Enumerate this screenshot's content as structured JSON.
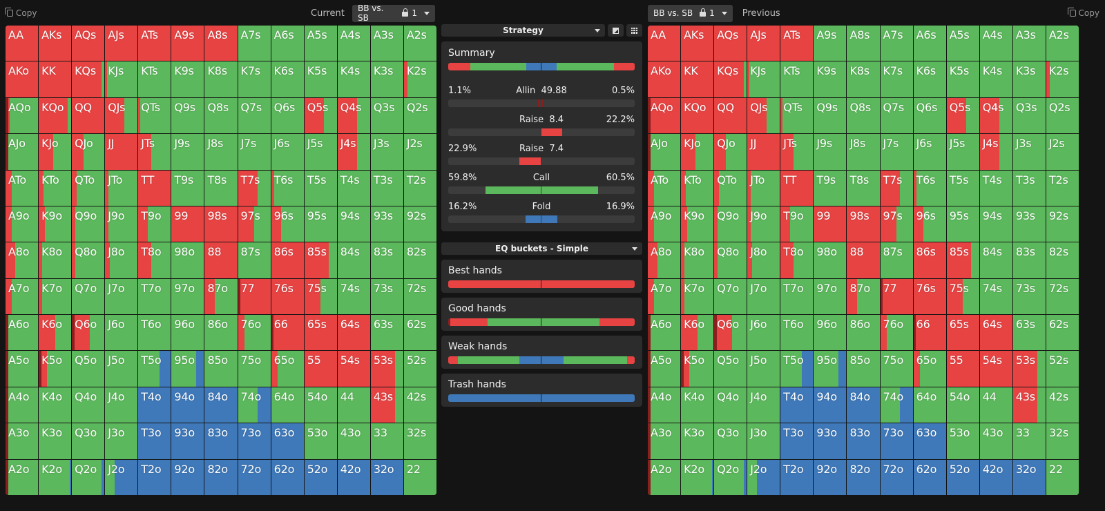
{
  "colors": {
    "raise": "#e84343",
    "call": "#5cb85c",
    "fold": "#3f79ba",
    "allin": "#8b1f1f"
  },
  "left": {
    "copy_label": "Copy",
    "title": "Current",
    "scenario": "BB vs. SB",
    "lock_value": "1",
    "grid": [
      [
        "AA",
        "AKs",
        "AQs",
        "AJs",
        "ATs",
        "A9s",
        "A8s",
        "A7s",
        "A6s",
        "A5s",
        "A4s",
        "A3s",
        "A2s"
      ],
      [
        "AKo",
        "KK",
        "KQs",
        "KJs",
        "KTs",
        "K9s",
        "K8s",
        "K7s",
        "K6s",
        "K5s",
        "K4s",
        "K3s",
        "K2s"
      ],
      [
        "AQo",
        "KQo",
        "QQ",
        "QJs",
        "QTs",
        "Q9s",
        "Q8s",
        "Q7s",
        "Q6s",
        "Q5s",
        "Q4s",
        "Q3s",
        "Q2s"
      ],
      [
        "AJo",
        "KJo",
        "QJo",
        "JJ",
        "JTs",
        "J9s",
        "J8s",
        "J7s",
        "J6s",
        "J5s",
        "J4s",
        "J3s",
        "J2s"
      ],
      [
        "ATo",
        "KTo",
        "QTo",
        "JTo",
        "TT",
        "T9s",
        "T8s",
        "T7s",
        "T6s",
        "T5s",
        "T4s",
        "T3s",
        "T2s"
      ],
      [
        "A9o",
        "K9o",
        "Q9o",
        "J9o",
        "T9o",
        "99",
        "98s",
        "97s",
        "96s",
        "95s",
        "94s",
        "93s",
        "92s"
      ],
      [
        "A8o",
        "K8o",
        "Q8o",
        "J8o",
        "T8o",
        "98o",
        "88",
        "87s",
        "86s",
        "85s",
        "84s",
        "83s",
        "82s"
      ],
      [
        "A7o",
        "K7o",
        "Q7o",
        "J7o",
        "T7o",
        "97o",
        "87o",
        "77",
        "76s",
        "75s",
        "74s",
        "73s",
        "72s"
      ],
      [
        "A6o",
        "K6o",
        "Q6o",
        "J6o",
        "T6o",
        "96o",
        "86o",
        "76o",
        "66",
        "65s",
        "64s",
        "63s",
        "62s"
      ],
      [
        "A5o",
        "K5o",
        "Q5o",
        "J5o",
        "T5o",
        "95o",
        "85o",
        "75o",
        "65o",
        "55",
        "54s",
        "53s",
        "52s"
      ],
      [
        "A4o",
        "K4o",
        "Q4o",
        "J4o",
        "T4o",
        "94o",
        "84o",
        "74o",
        "64o",
        "54o",
        "44",
        "43s",
        "42s"
      ],
      [
        "A3o",
        "K3o",
        "Q3o",
        "J3o",
        "T3o",
        "93o",
        "83o",
        "73o",
        "63o",
        "53o",
        "43o",
        "33",
        "32s"
      ],
      [
        "A2o",
        "K2o",
        "Q2o",
        "J2o",
        "T2o",
        "92o",
        "82o",
        "72o",
        "62o",
        "52o",
        "42o",
        "32o",
        "22"
      ]
    ]
  },
  "right": {
    "copy_label": "Copy",
    "title": "Previous",
    "scenario": "BB vs. SB",
    "lock_value": "1",
    "grid": [
      [
        "AA",
        "AKs",
        "AQs",
        "AJs",
        "ATs",
        "A9s",
        "A8s",
        "A7s",
        "A6s",
        "A5s",
        "A4s",
        "A3s",
        "A2s"
      ],
      [
        "AKo",
        "KK",
        "KQs",
        "KJs",
        "KTs",
        "K9s",
        "K8s",
        "K7s",
        "K6s",
        "K5s",
        "K4s",
        "K3s",
        "K2s"
      ],
      [
        "AQo",
        "KQo",
        "QQ",
        "QJs",
        "QTs",
        "Q9s",
        "Q8s",
        "Q7s",
        "Q6s",
        "Q5s",
        "Q4s",
        "Q3s",
        "Q2s"
      ],
      [
        "AJo",
        "KJo",
        "QJo",
        "JJ",
        "JTs",
        "J9s",
        "J8s",
        "J7s",
        "J6s",
        "J5s",
        "J4s",
        "J3s",
        "J2s"
      ],
      [
        "ATo",
        "KTo",
        "QTo",
        "JTo",
        "TT",
        "T9s",
        "T8s",
        "T7s",
        "T6s",
        "T5s",
        "T4s",
        "T3s",
        "T2s"
      ],
      [
        "A9o",
        "K9o",
        "Q9o",
        "J9o",
        "T9o",
        "99",
        "98s",
        "97s",
        "96s",
        "95s",
        "94s",
        "93s",
        "92s"
      ],
      [
        "A8o",
        "K8o",
        "Q8o",
        "J8o",
        "T8o",
        "98o",
        "88",
        "87s",
        "86s",
        "85s",
        "84s",
        "83s",
        "82s"
      ],
      [
        "A7o",
        "K7o",
        "Q7o",
        "J7o",
        "T7o",
        "97o",
        "87o",
        "77",
        "76s",
        "75s",
        "74s",
        "73s",
        "72s"
      ],
      [
        "A6o",
        "K6o",
        "Q6o",
        "J6o",
        "T6o",
        "96o",
        "86o",
        "76o",
        "66",
        "65s",
        "64s",
        "63s",
        "62s"
      ],
      [
        "A5o",
        "K5o",
        "Q5o",
        "J5o",
        "T5o",
        "95o",
        "85o",
        "75o",
        "65o",
        "55",
        "54s",
        "53s",
        "52s"
      ],
      [
        "A4o",
        "K4o",
        "Q4o",
        "J4o",
        "T4o",
        "94o",
        "84o",
        "74o",
        "64o",
        "54o",
        "44",
        "43s",
        "42s"
      ],
      [
        "A3o",
        "K3o",
        "Q3o",
        "J3o",
        "T3o",
        "93o",
        "83o",
        "73o",
        "63o",
        "53o",
        "43o",
        "33",
        "32s"
      ],
      [
        "A2o",
        "K2o",
        "Q2o",
        "J2o",
        "T2o",
        "92o",
        "82o",
        "72o",
        "62o",
        "52o",
        "42o",
        "32o",
        "22"
      ]
    ]
  },
  "center": {
    "strategy_label": "Strategy",
    "summary_title": "Summary",
    "actions": [
      {
        "left": "1.1%",
        "name": "Allin",
        "size": "49.88",
        "right": "0.5%"
      },
      {
        "left": "",
        "name": "Raise",
        "size": "8.4",
        "right": "22.2%"
      },
      {
        "left": "22.9%",
        "name": "Raise",
        "size": "7.4",
        "right": ""
      },
      {
        "left": "59.8%",
        "name": "Call",
        "size": "",
        "right": "60.5%"
      },
      {
        "left": "16.2%",
        "name": "Fold",
        "size": "",
        "right": "16.9%"
      }
    ],
    "eq_label": "EQ buckets - Simple",
    "buckets": [
      {
        "title": "Best hands"
      },
      {
        "title": "Good hands"
      },
      {
        "title": "Weak hands"
      },
      {
        "title": "Trash hands"
      }
    ]
  }
}
